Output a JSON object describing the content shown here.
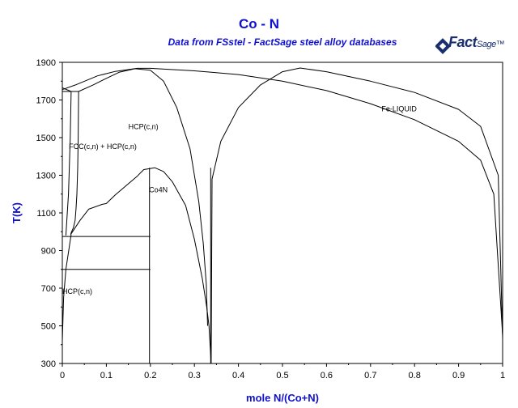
{
  "logo": {
    "brand": "FactSage"
  },
  "chart_data": {
    "type": "line",
    "title": "Co - N",
    "subtitle": "Data from FSstel - FactSage steel alloy databases",
    "xlabel": "mole N/(Co+N)",
    "ylabel": "T(K)",
    "xlim": [
      0,
      1
    ],
    "ylim": [
      300,
      1900
    ],
    "x_ticks": [
      "0",
      "0.1",
      "0.2",
      "0.3",
      "0.4",
      "0.5",
      "0.6",
      "0.7",
      "0.8",
      "0.9",
      "1"
    ],
    "y_ticks": [
      "300",
      "500",
      "700",
      "900",
      "1100",
      "1300",
      "1500",
      "1700",
      "1900"
    ],
    "grid": false,
    "region_labels": [
      {
        "text": "Fe-LIQUID",
        "x": 0.725,
        "y": 1640
      },
      {
        "text": "HCP(c,n)",
        "x": 0.15,
        "y": 1545
      },
      {
        "text": "FCC(c,n) + HCP(c,n)",
        "x": 0.015,
        "y": 1440
      },
      {
        "text": "Co4N",
        "x": 0.197,
        "y": 1210
      },
      {
        "text": "HCP(c,n)",
        "x": 0.0,
        "y": 670
      }
    ],
    "series": [
      {
        "values": [
          [
            0.333,
            500
          ],
          [
            0.338,
            300
          ],
          [
            0.34,
            1280
          ],
          [
            0.36,
            1480
          ],
          [
            0.4,
            1660
          ],
          [
            0.45,
            1780
          ],
          [
            0.5,
            1850
          ],
          [
            0.54,
            1870
          ],
          [
            0.6,
            1850
          ],
          [
            0.7,
            1800
          ],
          [
            0.8,
            1740
          ],
          [
            0.9,
            1650
          ],
          [
            0.95,
            1560
          ],
          [
            0.99,
            1300
          ],
          [
            1.0,
            430
          ]
        ]
      },
      {
        "values": [
          [
            0,
            1755
          ],
          [
            0.03,
            1780
          ],
          [
            0.08,
            1828
          ],
          [
            0.12,
            1852
          ],
          [
            0.17,
            1868
          ],
          [
            0.2,
            1868
          ],
          [
            0.3,
            1855
          ],
          [
            0.4,
            1835
          ],
          [
            0.5,
            1800
          ],
          [
            0.6,
            1750
          ],
          [
            0.7,
            1680
          ],
          [
            0.8,
            1595
          ],
          [
            0.9,
            1480
          ],
          [
            0.95,
            1380
          ],
          [
            0.98,
            1200
          ],
          [
            1.0,
            450
          ]
        ]
      },
      {
        "values": [
          [
            0,
            1765
          ],
          [
            0.02,
            1745
          ],
          [
            0.037,
            1745
          ]
        ]
      },
      {
        "values": [
          [
            0.037,
            1745
          ],
          [
            0.07,
            1780
          ],
          [
            0.1,
            1815
          ],
          [
            0.13,
            1848
          ],
          [
            0.165,
            1866
          ],
          [
            0.2,
            1858
          ],
          [
            0.23,
            1800
          ],
          [
            0.26,
            1660
          ],
          [
            0.29,
            1440
          ],
          [
            0.31,
            1160
          ],
          [
            0.32,
            940
          ],
          [
            0.327,
            720
          ],
          [
            0.33,
            500
          ]
        ]
      },
      {
        "values": [
          [
            0,
            1745
          ],
          [
            0.037,
            1745
          ]
        ]
      },
      {
        "values": [
          [
            0.037,
            1745
          ],
          [
            0.036,
            1500
          ],
          [
            0.035,
            1340
          ],
          [
            0.033,
            1200
          ],
          [
            0.031,
            1120
          ],
          [
            0.029,
            1060
          ],
          [
            0.025,
            1020
          ],
          [
            0.021,
            1000
          ],
          [
            0.019,
            985
          ]
        ]
      },
      {
        "values": [
          [
            0.02,
            1745
          ],
          [
            0.018,
            1500
          ],
          [
            0.014,
            1200
          ],
          [
            0.008,
            980
          ]
        ]
      },
      {
        "values": [
          [
            0.019,
            985
          ],
          [
            0.04,
            1060
          ],
          [
            0.06,
            1120
          ],
          [
            0.09,
            1145
          ],
          [
            0.1,
            1150
          ],
          [
            0.12,
            1195
          ],
          [
            0.145,
            1245
          ],
          [
            0.17,
            1295
          ],
          [
            0.185,
            1330
          ],
          [
            0.21,
            1340
          ],
          [
            0.23,
            1320
          ],
          [
            0.25,
            1265
          ],
          [
            0.28,
            1140
          ],
          [
            0.3,
            960
          ],
          [
            0.318,
            750
          ],
          [
            0.328,
            600
          ],
          [
            0.333,
            500
          ]
        ]
      },
      {
        "values": [
          [
            0,
            975
          ],
          [
            0.2,
            975
          ]
        ]
      },
      {
        "values": [
          [
            0,
            800
          ],
          [
            0.2,
            800
          ]
        ]
      },
      {
        "values": [
          [
            0.198,
            300
          ],
          [
            0.198,
            1340
          ]
        ]
      },
      {
        "values": [
          [
            0.337,
            300
          ],
          [
            0.337,
            1340
          ]
        ]
      },
      {
        "values": [
          [
            0,
            420
          ],
          [
            0.003,
            650
          ],
          [
            0.008,
            800
          ],
          [
            0.02,
            985
          ]
        ]
      }
    ]
  }
}
